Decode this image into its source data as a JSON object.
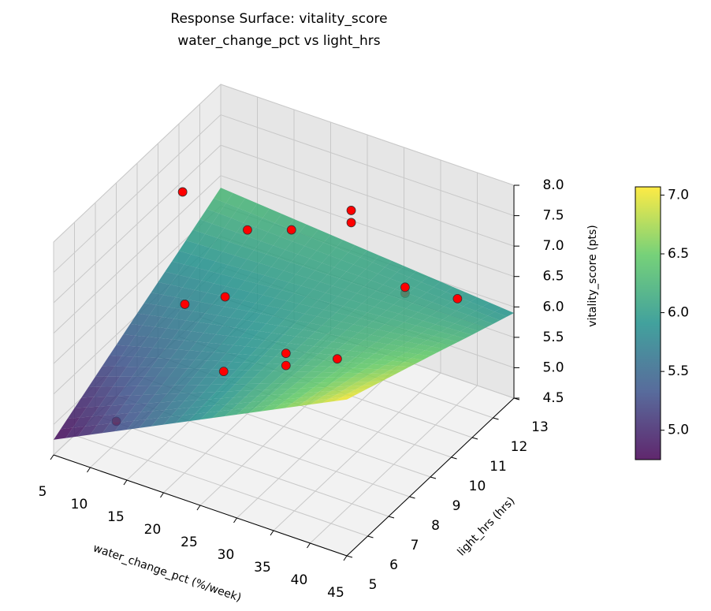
{
  "chart_data": {
    "type": "surface3d",
    "title": "Response Surface: vitality_score",
    "subtitle": "water_change_pct vs light_hrs",
    "xlabel": "water_change_pct (%/week)",
    "ylabel": "light_hrs (hrs)",
    "zlabel": "vitality_score (pts)",
    "xlim": [
      5,
      45
    ],
    "ylim": [
      5,
      13
    ],
    "zlim": [
      4.5,
      8.0
    ],
    "xticks": [
      5,
      10,
      15,
      20,
      25,
      30,
      35,
      40,
      45
    ],
    "yticks": [
      5,
      6,
      7,
      8,
      9,
      10,
      11,
      12,
      13
    ],
    "zticks": [
      4.5,
      {
        "value": 5.0,
        "label": "5.0"
      },
      5.5,
      {
        "value": 6.0,
        "label": "6.0"
      },
      6.5,
      {
        "value": 7.0,
        "label": "7.0"
      },
      7.5,
      {
        "value": 8.0,
        "label": "8.0"
      }
    ],
    "grid": true,
    "surface": {
      "colormap": "viridis",
      "alpha": 0.85,
      "x": [
        5,
        15,
        25,
        35,
        45
      ],
      "y": [
        5,
        7,
        9,
        11,
        13
      ],
      "z": [
        [
          4.75,
          5.33,
          5.91,
          6.49,
          7.07
        ],
        [
          5.14,
          5.55,
          5.96,
          6.37,
          6.78
        ],
        [
          5.53,
          5.77,
          6.01,
          6.25,
          6.49
        ],
        [
          5.91,
          5.98,
          6.05,
          6.12,
          6.19
        ],
        [
          6.3,
          6.2,
          6.1,
          6.0,
          5.9
        ]
      ]
    },
    "points": {
      "color": "#ff0000",
      "x": [
        5.5,
        28.5,
        28.5,
        43,
        11.5,
        17.5,
        11.5,
        17,
        33,
        33,
        31,
        31,
        38,
        22.5,
        9
      ],
      "y": [
        11,
        11,
        11,
        11,
        12,
        12,
        9,
        9,
        12,
        12,
        7,
        7,
        7,
        7,
        6.6
      ],
      "z": [
        6.9,
        7.55,
        7.35,
        6.7,
        6.2,
        6.45,
        5.95,
        6.3,
        6.15,
        6.05,
        6.6,
        6.4,
        6.8,
        5.95,
        4.7
      ]
    },
    "colorbar": {
      "clim": [
        4.75,
        7.07
      ],
      "ticks": [
        {
          "value": 5.0,
          "label": "5.0"
        },
        5.5,
        {
          "value": 6.0,
          "label": "6.0"
        },
        6.5,
        {
          "value": 7.0,
          "label": "7.0"
        }
      ]
    }
  }
}
